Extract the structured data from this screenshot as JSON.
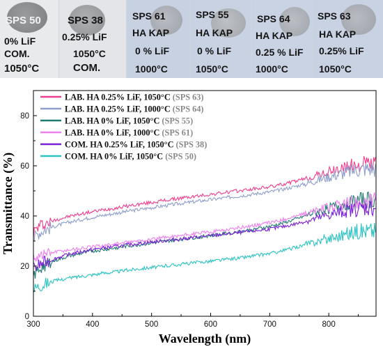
{
  "photos": [
    {
      "code": "SPS 50",
      "lines": [
        "0% LiF",
        "COM.",
        "1050°C"
      ]
    },
    {
      "code": "SPS 38",
      "lines": [
        "0.25% LiF",
        "1050°C",
        "COM."
      ]
    },
    {
      "code": "SPS 61",
      "lines": [
        "HA KAP",
        "0 % LiF",
        "1000°C"
      ]
    },
    {
      "code": "SPS 55",
      "lines": [
        "HA KAP",
        "0 % LiF",
        "1050°C"
      ]
    },
    {
      "code": "SPS 64",
      "lines": [
        "HA KAP",
        "0.25 % LiF",
        "1000°C"
      ]
    },
    {
      "code": "SPS 63",
      "lines": [
        "HA KAP",
        "0.25% LiF",
        "1050°C"
      ]
    }
  ],
  "chart_data": {
    "type": "line",
    "xlabel": "Wavelength (nm)",
    "ylabel": "Transmittance (%)",
    "xlim": [
      300,
      880
    ],
    "ylim": [
      0,
      90
    ],
    "xticks": [
      300,
      400,
      500,
      600,
      700,
      800
    ],
    "yticks": [
      0,
      20,
      40,
      60,
      80
    ],
    "grid": false,
    "legend_position": "top-left",
    "series": [
      {
        "name": "LAB. HA 0.25% LiF, 1050°C",
        "code": "(SPS 63)",
        "color": "#ee3f8f",
        "x": [
          300,
          310,
          320,
          340,
          360,
          380,
          400,
          420,
          440,
          460,
          480,
          500,
          520,
          540,
          560,
          580,
          600,
          620,
          640,
          660,
          680,
          700,
          720,
          740,
          760,
          780,
          800,
          820,
          840,
          860,
          880
        ],
        "y": [
          33.5,
          36,
          37,
          38.6,
          39.8,
          40.8,
          41.7,
          42.5,
          43.2,
          44,
          44.7,
          45.4,
          46.1,
          46.8,
          47.4,
          48,
          48.6,
          49.2,
          49.8,
          50.4,
          51,
          51.6,
          52.5,
          53.6,
          54.8,
          56.2,
          57.5,
          58.8,
          60,
          60.8,
          61
        ]
      },
      {
        "name": "LAB. HA 0.25% LiF, 1000°C",
        "code": "(SPS 64)",
        "color": "#8f9fcc",
        "x": [
          300,
          310,
          320,
          340,
          360,
          380,
          400,
          420,
          440,
          460,
          480,
          500,
          520,
          540,
          560,
          580,
          600,
          620,
          640,
          660,
          680,
          700,
          720,
          740,
          760,
          780,
          800,
          820,
          840,
          860,
          880
        ],
        "y": [
          31,
          33.5,
          34.5,
          36.2,
          37.5,
          38.5,
          39.5,
          40.3,
          41.1,
          41.9,
          42.6,
          43.3,
          44,
          44.7,
          45.3,
          45.9,
          46.5,
          47.1,
          47.7,
          48.3,
          49,
          49.6,
          50.5,
          51.6,
          52.8,
          54.2,
          55.6,
          56.8,
          58,
          58.8,
          59
        ]
      },
      {
        "name": "LAB. HA 0% LiF, 1050°C",
        "code": "(SPS 55)",
        "color": "#1e7a70",
        "x": [
          300,
          310,
          320,
          340,
          360,
          380,
          400,
          420,
          440,
          460,
          480,
          500,
          520,
          540,
          560,
          580,
          600,
          620,
          640,
          660,
          680,
          700,
          720,
          740,
          760,
          780,
          800,
          820,
          840,
          860,
          880
        ],
        "y": [
          16,
          19,
          20.5,
          22.5,
          24,
          25,
          26,
          26.6,
          27.3,
          28,
          28.6,
          29.2,
          29.8,
          30.4,
          31,
          31.6,
          32.2,
          32.8,
          33.5,
          34.2,
          35,
          35.8,
          37,
          38.4,
          40,
          41.6,
          43,
          44.4,
          45.6,
          46.3,
          46.5
        ]
      },
      {
        "name": "LAB. HA 0% LiF, 1000°C",
        "code": "(SPS 61)",
        "color": "#ee80f0",
        "x": [
          300,
          310,
          320,
          340,
          360,
          380,
          400,
          420,
          440,
          460,
          480,
          500,
          520,
          540,
          560,
          580,
          600,
          620,
          640,
          660,
          680,
          700,
          720,
          740,
          760,
          780,
          800,
          820,
          840,
          860,
          880
        ],
        "y": [
          23.5,
          24.5,
          25,
          25.8,
          26.5,
          27.1,
          27.7,
          28.3,
          28.9,
          29.5,
          30.1,
          30.7,
          31.3,
          31.9,
          32.5,
          33.1,
          33.7,
          34.3,
          35,
          35.7,
          36.5,
          37.3,
          38.4,
          39.6,
          40.9,
          42.2,
          43.4,
          44.4,
          45.2,
          45.7,
          46
        ]
      },
      {
        "name": "COM. HA 0.25% LiF, 1050°C",
        "code": "(SPS 38)",
        "color": "#7a1fd8",
        "x": [
          300,
          310,
          320,
          340,
          360,
          380,
          400,
          420,
          440,
          460,
          480,
          500,
          520,
          540,
          560,
          580,
          600,
          620,
          640,
          660,
          680,
          700,
          720,
          740,
          760,
          780,
          800,
          820,
          840,
          860,
          880
        ],
        "y": [
          19,
          20.5,
          21.5,
          23.3,
          24.7,
          25.7,
          26.6,
          27.3,
          27.9,
          28.5,
          29.1,
          29.6,
          30.1,
          30.6,
          31.1,
          31.6,
          32.1,
          32.6,
          33.1,
          33.6,
          34.2,
          34.8,
          35.6,
          36.6,
          37.8,
          39,
          40.3,
          41.5,
          42.5,
          43.2,
          43.5
        ]
      },
      {
        "name": "COM. HA 0% LiF, 1050°C",
        "code": "(SPS 50)",
        "color": "#2cc3c3",
        "x": [
          300,
          310,
          320,
          340,
          360,
          380,
          400,
          420,
          440,
          460,
          480,
          500,
          520,
          540,
          560,
          580,
          600,
          620,
          640,
          660,
          680,
          700,
          720,
          740,
          760,
          780,
          800,
          820,
          840,
          860,
          880
        ],
        "y": [
          11,
          12.5,
          13.2,
          14.3,
          15.2,
          15.9,
          16.6,
          17.2,
          17.8,
          18.4,
          19,
          19.5,
          20,
          20.5,
          21,
          21.5,
          22,
          22.5,
          23,
          23.6,
          24.3,
          25,
          26,
          27.2,
          28.5,
          29.8,
          31,
          32.2,
          33.5,
          34.3,
          34.5
        ]
      }
    ]
  }
}
